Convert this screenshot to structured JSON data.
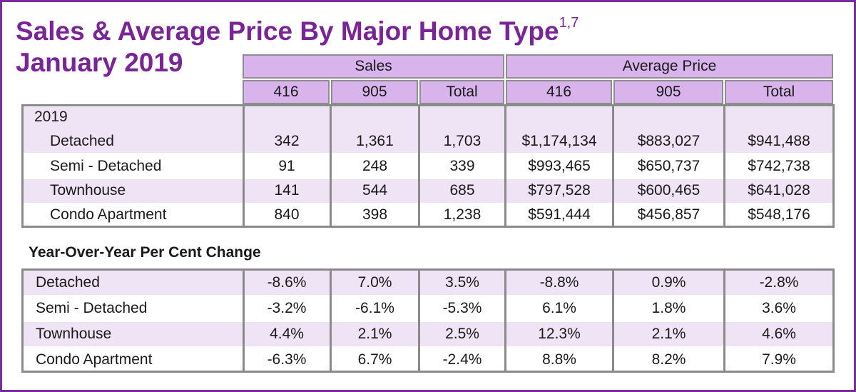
{
  "title": {
    "line1": "Sales & Average Price By Major Home Type",
    "superscript": "1,7",
    "line2": "January 2019"
  },
  "header": {
    "group_sales": "Sales",
    "group_avg": "Average Price",
    "cols": [
      "416",
      "905",
      "Total",
      "416",
      "905",
      "Total"
    ]
  },
  "section_year": "2019",
  "rows": [
    {
      "label": "Detached",
      "values": [
        "342",
        "1,361",
        "1,703",
        "$1,174,134",
        "$883,027",
        "$941,488"
      ]
    },
    {
      "label": "Semi - Detached",
      "values": [
        "91",
        "248",
        "339",
        "$993,465",
        "$650,737",
        "$742,738"
      ]
    },
    {
      "label": "Townhouse",
      "values": [
        "141",
        "544",
        "685",
        "$797,528",
        "$600,465",
        "$641,028"
      ]
    },
    {
      "label": "Condo Apartment",
      "values": [
        "840",
        "398",
        "1,238",
        "$591,444",
        "$456,857",
        "$548,176"
      ]
    }
  ],
  "yoy_title": "Year-Over-Year Per Cent Change",
  "yoy_rows": [
    {
      "label": "Detached",
      "values": [
        "-8.6%",
        "7.0%",
        "3.5%",
        "-8.8%",
        "0.9%",
        "-2.8%"
      ]
    },
    {
      "label": "Semi - Detached",
      "values": [
        "-3.2%",
        "-6.1%",
        "-5.3%",
        "6.1%",
        "1.8%",
        "3.6%"
      ]
    },
    {
      "label": "Townhouse",
      "values": [
        "4.4%",
        "2.1%",
        "2.5%",
        "12.3%",
        "2.1%",
        "4.6%"
      ]
    },
    {
      "label": "Condo Apartment",
      "values": [
        "-6.3%",
        "6.7%",
        "-2.4%",
        "8.8%",
        "8.2%",
        "7.9%"
      ]
    }
  ],
  "colors": {
    "title": "#7a2596",
    "header_fill": "#d9b4ec",
    "band": "#efe3f6",
    "border": "#8a8a8a",
    "frame": "#7b2c9c"
  }
}
